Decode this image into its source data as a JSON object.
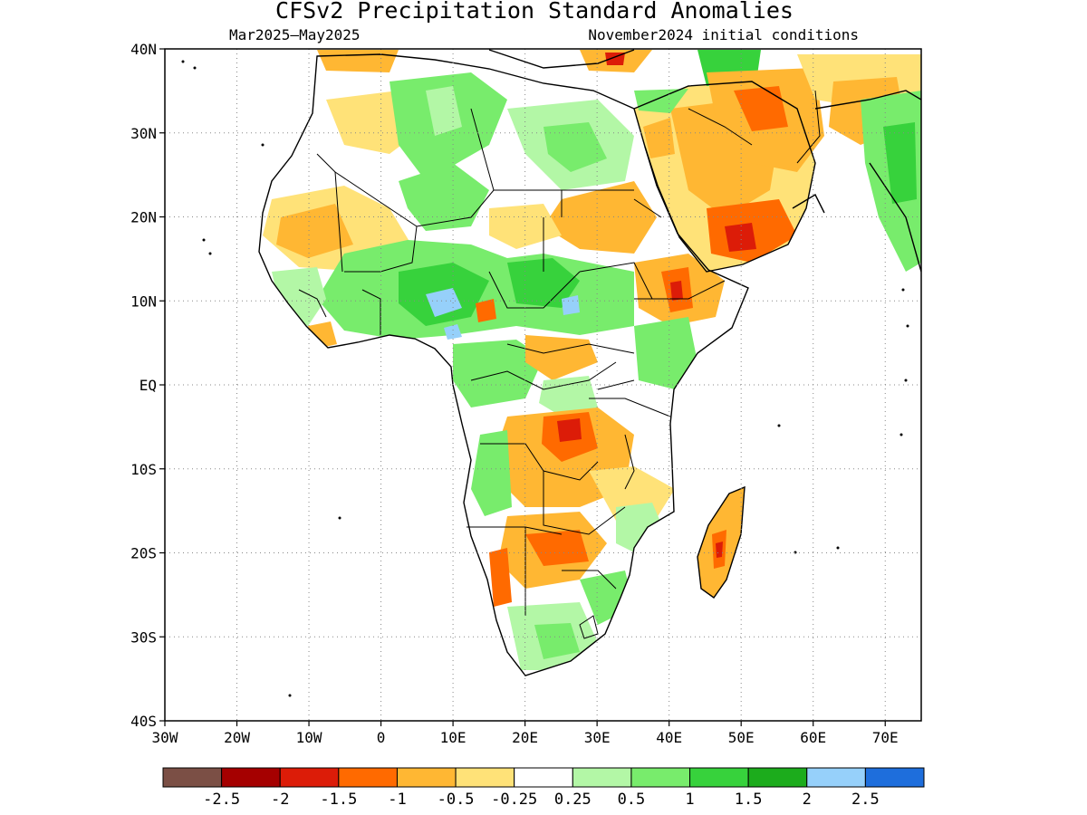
{
  "header": {
    "title": "CFSv2 Precipitation Standard Anomalies",
    "period": "Mar2025–May2025",
    "init": "November2024 initial conditions"
  },
  "map": {
    "lat_labels": [
      "40N",
      "30N",
      "20N",
      "10N",
      "EQ",
      "10S",
      "20S",
      "30S",
      "40S"
    ],
    "lon_labels": [
      "30W",
      "20W",
      "10W",
      "0",
      "10E",
      "20E",
      "30E",
      "40E",
      "50E",
      "60E",
      "70E"
    ],
    "extent": {
      "lon_min": -30,
      "lon_max": 75,
      "lat_min": -40,
      "lat_max": 40
    }
  },
  "colorbar": {
    "colors": [
      "#7b4f45",
      "#a50000",
      "#dc1c08",
      "#ff6a00",
      "#ffb733",
      "#ffe278",
      "#ffffff",
      "#b3f7a6",
      "#78ec6c",
      "#37d23c",
      "#1cac1c",
      "#96d0fa",
      "#1e6edc"
    ],
    "labels": [
      "-2.5",
      "-2",
      "-1.5",
      "-1",
      "-0.5",
      "-0.25",
      "0.25",
      "0.5",
      "1",
      "1.5",
      "2",
      "2.5"
    ]
  }
}
